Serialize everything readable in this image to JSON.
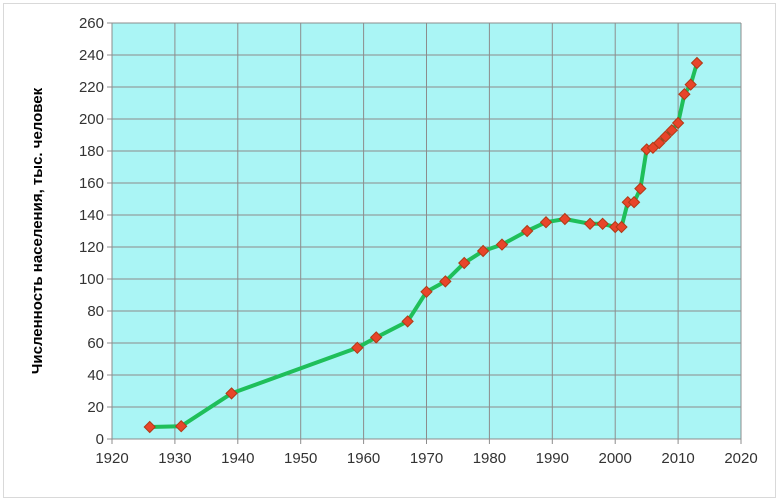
{
  "chart_data": {
    "type": "line",
    "title": "",
    "xlabel": "",
    "ylabel": "Численность населения, тыс. человек",
    "xlim": [
      1920,
      2020
    ],
    "ylim": [
      0,
      260
    ],
    "xticks": [
      1920,
      1930,
      1940,
      1950,
      1960,
      1970,
      1980,
      1990,
      2000,
      2010,
      2020
    ],
    "yticks": [
      0,
      20,
      40,
      60,
      80,
      100,
      120,
      140,
      160,
      180,
      200,
      220,
      240,
      260
    ],
    "grid": true,
    "legend": "none",
    "colors": {
      "plot_background": "#aaf5f5",
      "gridline": "#8c8c8c",
      "line": "#1fbf5a",
      "marker_fill": "#e8452a",
      "marker_edge": "#b03a16"
    },
    "series": [
      {
        "x": [
          1926,
          1931,
          1939,
          1959,
          1962,
          1967,
          1970,
          1973,
          1976,
          1979,
          1982,
          1986,
          1989,
          1992,
          1996,
          1998,
          2000,
          2001,
          2002,
          2003,
          2004,
          2005,
          2006,
          2007,
          2008,
          2009,
          2010,
          2011,
          2012,
          2013
        ],
        "y": [
          7.5,
          8,
          28.5,
          57,
          63.5,
          73.5,
          92,
          98.5,
          110,
          117.5,
          121.5,
          130,
          135.5,
          137.5,
          134.5,
          134.5,
          132.5,
          132.5,
          148,
          148,
          156.5,
          181,
          182,
          185,
          189,
          193,
          197.5,
          215.5,
          221.5,
          235
        ]
      }
    ]
  }
}
